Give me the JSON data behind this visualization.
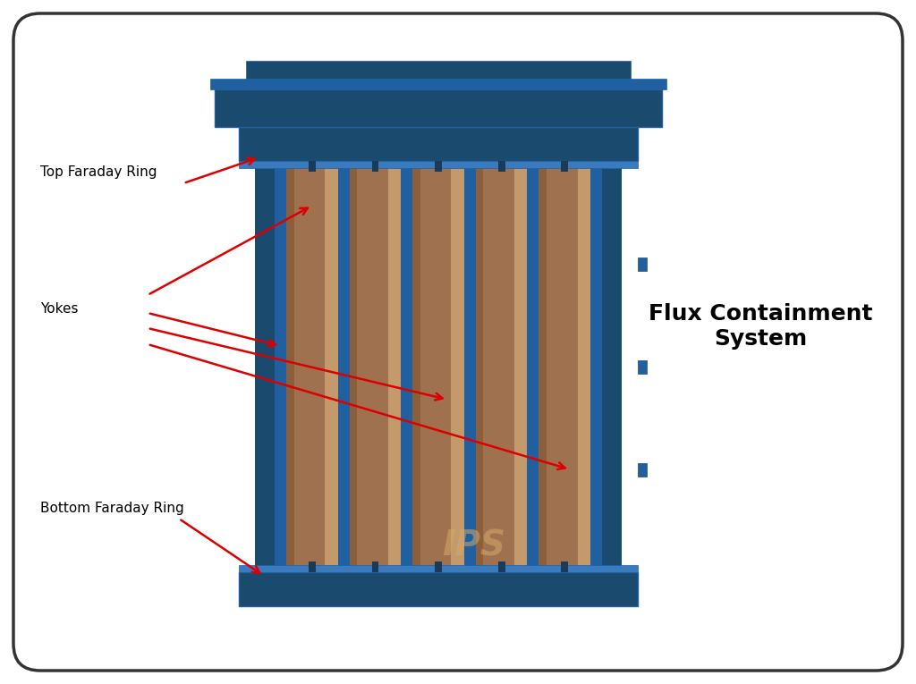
{
  "background_color": "#ffffff",
  "border_color": "#333333",
  "blue_dark": "#1a4a6e",
  "blue_mid": "#2060a0",
  "blue_light": "#3a7abf",
  "wood_dark": "#8B5E3C",
  "wood_mid": "#A0714F",
  "wood_light": "#C49A6C",
  "tan_light": "#D4A96A",
  "arrow_color": "#DD0000",
  "label_color": "#000000",
  "title_color": "#000000",
  "watermark_color": "#D4A96A",
  "title": "Flux Containment\nSystem",
  "label_top_faraday": "Top Faraday Ring",
  "label_yokes": "Yokes",
  "label_bottom_faraday": "Bottom Faraday Ring"
}
